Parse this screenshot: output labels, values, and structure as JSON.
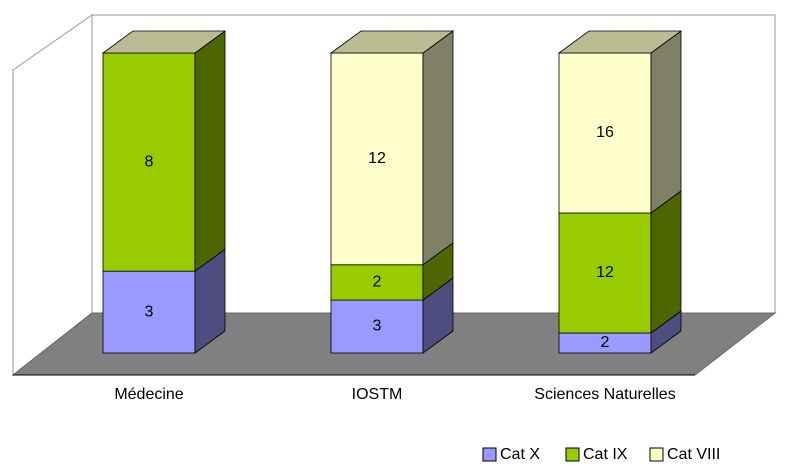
{
  "chart_data": {
    "type": "bar3d",
    "stacking": "percent",
    "categories": [
      "Médecine",
      "IOSTM",
      "Sciences Naturelles"
    ],
    "series": [
      {
        "name": "Cat X",
        "color": "#9999ff",
        "values": [
          3,
          3,
          2
        ]
      },
      {
        "name": "Cat IX",
        "color": "#99cc00",
        "values": [
          8,
          2,
          12
        ]
      },
      {
        "name": "Cat VIII",
        "color": "#ffffcc",
        "values": [
          null,
          12,
          16
        ]
      }
    ],
    "legend": "bottom-right"
  }
}
